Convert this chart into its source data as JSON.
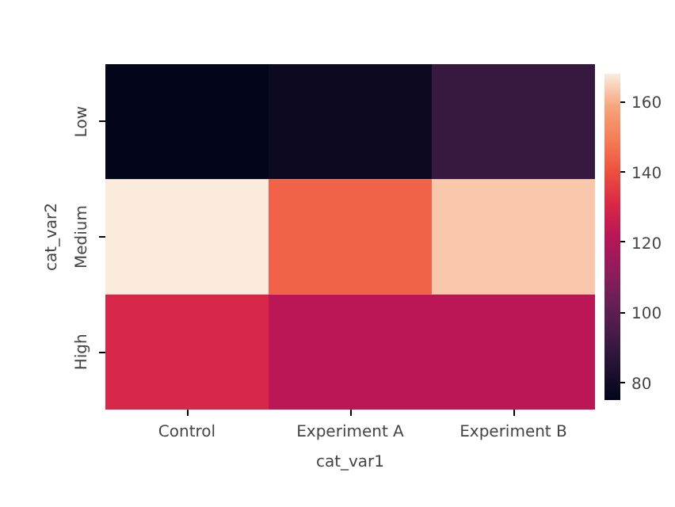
{
  "chart_data": {
    "type": "heatmap",
    "xlabel": "cat_var1",
    "ylabel": "cat_var2",
    "categories": [
      "Control",
      "Experiment A",
      "Experiment B"
    ],
    "y_categories": [
      "Low",
      "Medium",
      "High"
    ],
    "cells": [
      [
        75,
        78,
        90
      ],
      [
        168,
        144,
        163
      ],
      [
        130,
        122,
        122
      ]
    ],
    "clim": [
      75,
      168
    ],
    "cticks": [
      80,
      100,
      120,
      140,
      160
    ]
  }
}
